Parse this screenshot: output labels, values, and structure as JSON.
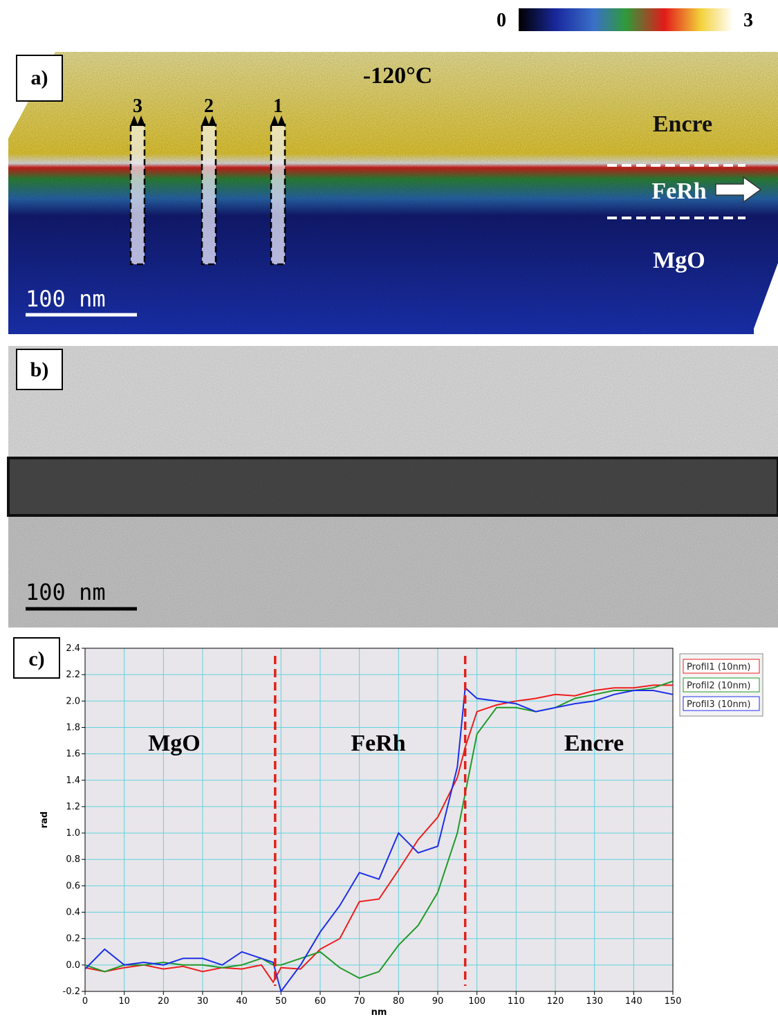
{
  "colorbar": {
    "min": 0,
    "max": 3
  },
  "panel_a": {
    "label": "a)",
    "temperature": "-120°C",
    "layers": [
      "Encre",
      "FeRh",
      "MgO"
    ],
    "profiles": [
      "3",
      "2",
      "1"
    ],
    "scalebar": "100 nm"
  },
  "panel_b": {
    "label": "b)",
    "scalebar": "100 nm"
  },
  "chart_data": {
    "type": "line",
    "label": "c)",
    "xlabel": "nm",
    "ylabel": "rad",
    "regions": [
      "MgO",
      "FeRh",
      "Encre"
    ],
    "vlines": [
      48.5,
      97
    ],
    "vline_color": "#e0201a",
    "grid": true,
    "legend": "top-right",
    "xlim": [
      0,
      150
    ],
    "ylim": [
      -0.2,
      2.4
    ],
    "xticks": [
      0,
      10,
      20,
      30,
      40,
      50,
      60,
      70,
      80,
      90,
      100,
      110,
      120,
      130,
      140,
      150
    ],
    "yticks": [
      -0.2,
      {
        "value": 0,
        "label": "0.0"
      },
      0.2,
      0.4,
      0.6,
      0.8,
      {
        "value": 1,
        "label": "1.0"
      },
      1.2,
      1.4,
      1.6,
      1.8,
      {
        "value": 2,
        "label": "2.0"
      },
      2.2,
      2.4
    ],
    "x": [
      0,
      5,
      10,
      15,
      20,
      25,
      30,
      35,
      40,
      45,
      48,
      50,
      55,
      60,
      65,
      70,
      75,
      80,
      85,
      90,
      95,
      97,
      100,
      105,
      110,
      115,
      120,
      125,
      130,
      135,
      140,
      145,
      150
    ],
    "series": [
      {
        "name": "Profil1 (10nm)",
        "color": "#ee1c1c",
        "values": [
          -0.02,
          -0.05,
          -0.02,
          0.0,
          -0.03,
          -0.01,
          -0.05,
          -0.02,
          -0.03,
          0.0,
          -0.13,
          -0.02,
          -0.03,
          0.12,
          0.2,
          0.48,
          0.5,
          0.72,
          0.95,
          1.12,
          1.42,
          1.65,
          1.92,
          1.97,
          2.0,
          2.02,
          2.05,
          2.04,
          2.08,
          2.1,
          2.1,
          2.12,
          2.12
        ]
      },
      {
        "name": "Profil2 (10nm)",
        "color": "#1f9a2a",
        "values": [
          0.0,
          -0.05,
          0.0,
          0.0,
          0.02,
          0.0,
          0.0,
          -0.02,
          0.0,
          0.05,
          0.0,
          0.0,
          0.05,
          0.1,
          -0.02,
          -0.1,
          -0.05,
          0.15,
          0.3,
          0.55,
          1.0,
          1.3,
          1.75,
          1.95,
          1.95,
          1.92,
          1.95,
          2.02,
          2.05,
          2.08,
          2.08,
          2.1,
          2.15
        ]
      },
      {
        "name": "Profil3 (10nm)",
        "color": "#1c2ee8",
        "values": [
          -0.03,
          0.12,
          0.0,
          0.02,
          0.0,
          0.05,
          0.05,
          0.0,
          0.1,
          0.05,
          0.02,
          -0.2,
          0.0,
          0.25,
          0.45,
          0.7,
          0.65,
          1.0,
          0.85,
          0.9,
          1.5,
          2.1,
          2.02,
          2.0,
          1.98,
          1.92,
          1.95,
          1.98,
          2.0,
          2.05,
          2.08,
          2.08,
          2.05
        ]
      }
    ]
  }
}
